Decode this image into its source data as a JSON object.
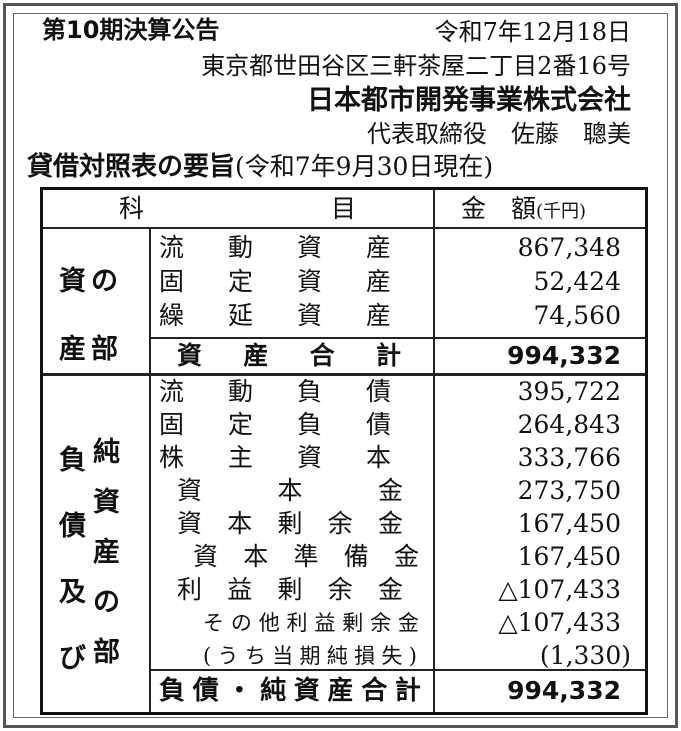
{
  "header": {
    "title": "第10期決算公告",
    "date": "令和7年12月18日",
    "address": "東京都世田谷区三軒茶屋二丁目2番16号",
    "company": "日本都市開発事業株式会社",
    "representative": "代表取締役　佐藤　聰美",
    "bs_title": "貸借対照表の要旨",
    "bs_date": "(令和7年9月30日現在)"
  },
  "table": {
    "col_item_1": "科",
    "col_item_2": "目",
    "col_amount": "金　額",
    "col_unit": "(千円)",
    "assets": {
      "section_left": "資産",
      "section_right": "の部",
      "rows": [
        {
          "label": "流動資産",
          "value": "867,348"
        },
        {
          "label": "固定資産",
          "value": "52,424"
        },
        {
          "label": "繰延資産",
          "value": "74,560"
        }
      ],
      "total_label": "資産合計",
      "total_value": "994,332"
    },
    "liabilities": {
      "section_left": "負債及び",
      "section_right": "純資産の部",
      "rows": [
        {
          "label": "流動負債",
          "value": "395,722"
        },
        {
          "label": "固定負債",
          "value": "264,843"
        },
        {
          "label": "株主資本",
          "value": "333,766"
        },
        {
          "label": "資本金",
          "value": "273,750"
        },
        {
          "label": "資本剰余金",
          "value": "167,450"
        },
        {
          "label": "資本準備金",
          "value": "167,450"
        },
        {
          "label": "利益剰余金",
          "value": "△107,433"
        },
        {
          "label": "その他利益剰余金",
          "value": "△107,433"
        },
        {
          "label": "(うち当期純損失)",
          "value": "(1,330)"
        }
      ],
      "total_label": "負債・純資産合計",
      "total_value": "994,332"
    }
  }
}
